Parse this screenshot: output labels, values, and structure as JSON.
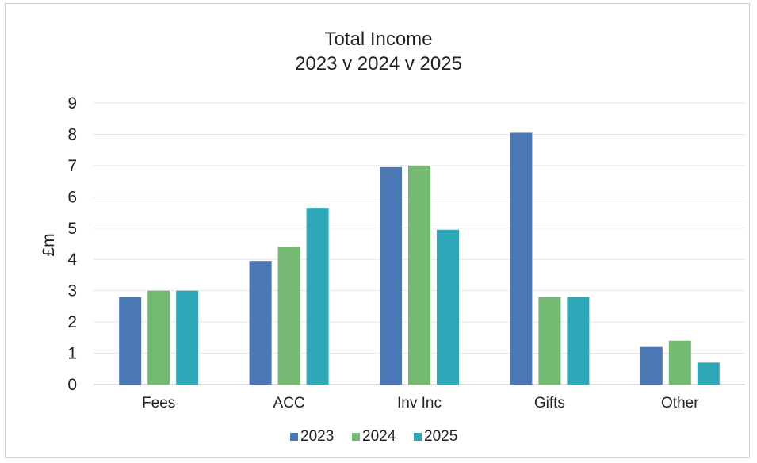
{
  "chart_data": {
    "type": "bar",
    "title": "Total Income",
    "subtitle": "2023 v 2024 v 2025",
    "xlabel": "",
    "ylabel": "£m",
    "ylim": [
      0,
      9
    ],
    "yticks": [
      0,
      1,
      2,
      3,
      4,
      5,
      6,
      7,
      8,
      9
    ],
    "categories": [
      "Fees",
      "ACC",
      "Inv Inc",
      "Gifts",
      "Other"
    ],
    "series": [
      {
        "name": "2023",
        "color": "#4a78b5",
        "values": [
          2.8,
          3.95,
          6.95,
          8.05,
          1.2
        ]
      },
      {
        "name": "2024",
        "color": "#74b972",
        "values": [
          3.0,
          4.4,
          7.0,
          2.8,
          1.4
        ]
      },
      {
        "name": "2025",
        "color": "#2ea7b8",
        "values": [
          3.0,
          5.65,
          4.95,
          2.8,
          0.7
        ]
      }
    ],
    "grid": "horizontal",
    "legend_position": "bottom"
  }
}
